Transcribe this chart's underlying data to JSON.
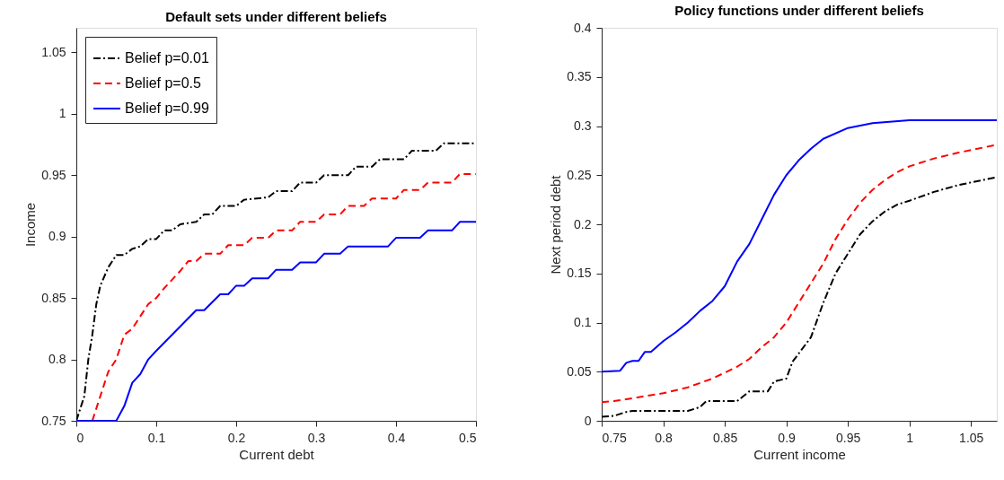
{
  "chart_data": [
    {
      "type": "line",
      "title": "Default sets under different beliefs",
      "xlabel": "Current debt",
      "ylabel": "Income",
      "xlim": [
        0,
        0.5
      ],
      "xticks": [
        0,
        0.1,
        0.2,
        0.3,
        0.4,
        0.5
      ],
      "ylim": [
        0.75,
        1.07
      ],
      "yticks": [
        0.75,
        0.8,
        0.85,
        0.9,
        0.95,
        1,
        1.05
      ],
      "grid": false,
      "legend": "top left",
      "marker": "none",
      "series": [
        {
          "name": "Belief p=0.01",
          "color": "#000000",
          "line_style": "dashdot",
          "x": [
            0,
            0.005,
            0.01,
            0.015,
            0.02,
            0.025,
            0.03,
            0.04,
            0.05,
            0.06,
            0.07,
            0.08,
            0.09,
            0.1,
            0.11,
            0.12,
            0.13,
            0.15,
            0.16,
            0.17,
            0.18,
            0.2,
            0.21,
            0.24,
            0.25,
            0.27,
            0.28,
            0.3,
            0.31,
            0.34,
            0.35,
            0.37,
            0.38,
            0.41,
            0.42,
            0.45,
            0.46,
            0.5
          ],
          "values": [
            0.75,
            0.76,
            0.77,
            0.8,
            0.82,
            0.845,
            0.86,
            0.875,
            0.885,
            0.885,
            0.89,
            0.892,
            0.898,
            0.898,
            0.905,
            0.905,
            0.91,
            0.912,
            0.918,
            0.918,
            0.925,
            0.925,
            0.93,
            0.932,
            0.937,
            0.937,
            0.944,
            0.944,
            0.95,
            0.95,
            0.957,
            0.957,
            0.963,
            0.963,
            0.97,
            0.97,
            0.976,
            0.976
          ]
        },
        {
          "name": "Belief p=0.5",
          "color": "#ff0000",
          "line_style": "dashed",
          "x": [
            0.02,
            0.03,
            0.04,
            0.05,
            0.06,
            0.07,
            0.08,
            0.09,
            0.1,
            0.11,
            0.12,
            0.13,
            0.14,
            0.15,
            0.16,
            0.18,
            0.19,
            0.21,
            0.22,
            0.24,
            0.25,
            0.27,
            0.28,
            0.3,
            0.31,
            0.33,
            0.34,
            0.36,
            0.37,
            0.4,
            0.41,
            0.43,
            0.44,
            0.47,
            0.48,
            0.5
          ],
          "values": [
            0.75,
            0.77,
            0.79,
            0.8,
            0.82,
            0.825,
            0.835,
            0.845,
            0.85,
            0.858,
            0.865,
            0.872,
            0.88,
            0.88,
            0.886,
            0.886,
            0.893,
            0.893,
            0.899,
            0.899,
            0.905,
            0.905,
            0.912,
            0.912,
            0.918,
            0.918,
            0.925,
            0.925,
            0.931,
            0.931,
            0.938,
            0.938,
            0.944,
            0.944,
            0.951,
            0.951
          ]
        },
        {
          "name": "Belief p=0.99",
          "color": "#0000ff",
          "line_style": "solid",
          "x": [
            0,
            0.05,
            0.06,
            0.07,
            0.08,
            0.09,
            0.1,
            0.15,
            0.16,
            0.18,
            0.19,
            0.2,
            0.21,
            0.22,
            0.24,
            0.25,
            0.27,
            0.28,
            0.3,
            0.31,
            0.33,
            0.34,
            0.39,
            0.4,
            0.43,
            0.44,
            0.47,
            0.48,
            0.5
          ],
          "values": [
            0.75,
            0.75,
            0.762,
            0.781,
            0.788,
            0.8,
            0.807,
            0.84,
            0.84,
            0.853,
            0.853,
            0.86,
            0.86,
            0.866,
            0.866,
            0.873,
            0.873,
            0.879,
            0.879,
            0.886,
            0.886,
            0.892,
            0.892,
            0.899,
            0.899,
            0.905,
            0.905,
            0.912,
            0.912
          ]
        }
      ]
    },
    {
      "type": "line",
      "title": "Policy functions under different beliefs",
      "xlabel": "Current income",
      "ylabel": "Next period debt",
      "xlim": [
        0.75,
        1.071
      ],
      "xticks": [
        0.75,
        0.8,
        0.85,
        0.9,
        0.95,
        1,
        1.05
      ],
      "ylim": [
        0,
        0.4
      ],
      "yticks": [
        0,
        0.05,
        0.1,
        0.15,
        0.2,
        0.25,
        0.3,
        0.35,
        0.4
      ],
      "grid": false,
      "legend": "top left",
      "marker": "none",
      "series": [
        {
          "name": "Belief p=0.01",
          "color": "#000000",
          "line_style": "dashdot",
          "x": [
            0.75,
            0.76,
            0.77,
            0.775,
            0.82,
            0.83,
            0.835,
            0.86,
            0.87,
            0.885,
            0.89,
            0.9,
            0.905,
            0.92,
            0.93,
            0.94,
            0.95,
            0.96,
            0.97,
            0.98,
            0.99,
            1.0,
            1.02,
            1.04,
            1.071
          ],
          "values": [
            0.004,
            0.005,
            0.009,
            0.01,
            0.01,
            0.014,
            0.02,
            0.02,
            0.03,
            0.03,
            0.04,
            0.043,
            0.06,
            0.085,
            0.12,
            0.15,
            0.17,
            0.19,
            0.203,
            0.213,
            0.22,
            0.224,
            0.233,
            0.24,
            0.248
          ]
        },
        {
          "name": "Belief p=0.5",
          "color": "#ff0000",
          "line_style": "dashed",
          "x": [
            0.75,
            0.76,
            0.78,
            0.8,
            0.82,
            0.84,
            0.86,
            0.87,
            0.88,
            0.89,
            0.9,
            0.91,
            0.92,
            0.93,
            0.94,
            0.95,
            0.96,
            0.97,
            0.98,
            0.99,
            1.0,
            1.02,
            1.04,
            1.071
          ],
          "values": [
            0.019,
            0.02,
            0.024,
            0.028,
            0.034,
            0.043,
            0.055,
            0.063,
            0.075,
            0.085,
            0.1,
            0.12,
            0.14,
            0.16,
            0.185,
            0.205,
            0.222,
            0.235,
            0.245,
            0.253,
            0.259,
            0.267,
            0.273,
            0.281
          ]
        },
        {
          "name": "Belief p=0.99",
          "color": "#0000ff",
          "line_style": "solid",
          "x": [
            0.75,
            0.765,
            0.77,
            0.775,
            0.78,
            0.785,
            0.79,
            0.8,
            0.81,
            0.82,
            0.83,
            0.84,
            0.85,
            0.86,
            0.87,
            0.88,
            0.89,
            0.9,
            0.91,
            0.92,
            0.93,
            0.95,
            0.97,
            1.0,
            1.071
          ],
          "values": [
            0.05,
            0.051,
            0.059,
            0.061,
            0.061,
            0.07,
            0.07,
            0.081,
            0.09,
            0.1,
            0.112,
            0.122,
            0.137,
            0.162,
            0.18,
            0.205,
            0.23,
            0.25,
            0.265,
            0.277,
            0.287,
            0.298,
            0.303,
            0.306,
            0.306
          ]
        }
      ]
    }
  ]
}
